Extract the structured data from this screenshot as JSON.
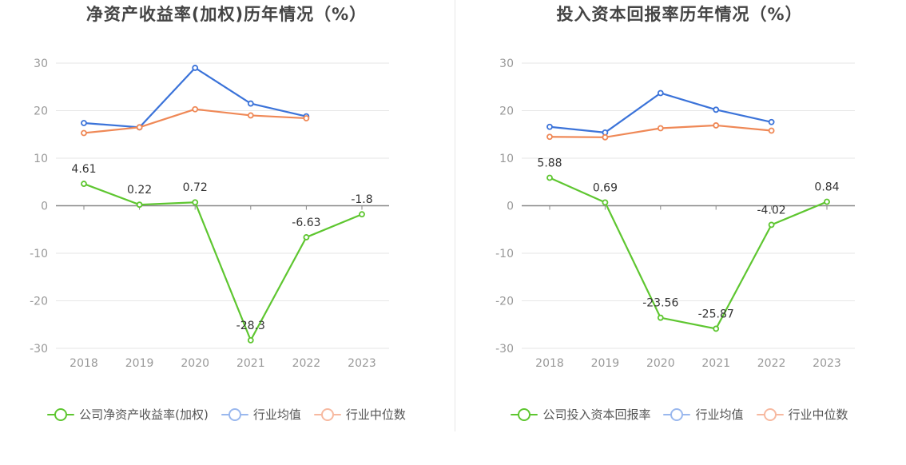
{
  "charts": [
    {
      "title": "净资产收益率(加权)历年情况（%）",
      "legend": [
        "公司净资产收益率(加权)",
        "行业均值",
        "行业中位数"
      ],
      "chart_data": {
        "type": "line",
        "title": "净资产收益率(加权)历年情况（%）",
        "categories": [
          "2018",
          "2019",
          "2020",
          "2021",
          "2022",
          "2023"
        ],
        "ylim": [
          -30,
          30
        ],
        "yticks": [
          30,
          20,
          10,
          0,
          -10,
          -20,
          -30
        ],
        "series": [
          {
            "name": "公司净资产收益率(加权)",
            "color": "#5ec630",
            "values": [
              4.61,
              0.22,
              0.72,
              -28.3,
              -6.63,
              -1.8
            ],
            "labels": [
              "4.61",
              "0.22",
              "0.72",
              "-28.3",
              "-6.63",
              "-1.8"
            ]
          },
          {
            "name": "行业均值",
            "color": "#3b73d9",
            "values": [
              17.4,
              16.5,
              29.0,
              21.5,
              18.8,
              null
            ]
          },
          {
            "name": "行业中位数",
            "color": "#ef8856",
            "values": [
              15.3,
              16.5,
              20.3,
              19.0,
              18.4,
              null
            ]
          }
        ]
      }
    },
    {
      "title": "投入资本回报率历年情况（%）",
      "legend": [
        "公司投入资本回报率",
        "行业均值",
        "行业中位数"
      ],
      "chart_data": {
        "type": "line",
        "title": "投入资本回报率历年情况（%）",
        "categories": [
          "2018",
          "2019",
          "2020",
          "2021",
          "2022",
          "2023"
        ],
        "ylim": [
          -30,
          30
        ],
        "yticks": [
          30,
          20,
          10,
          0,
          -10,
          -20,
          -30
        ],
        "series": [
          {
            "name": "公司投入资本回报率",
            "color": "#5ec630",
            "values": [
              5.88,
              0.69,
              -23.56,
              -25.87,
              -4.02,
              0.84
            ],
            "labels": [
              "5.88",
              "0.69",
              "-23.56",
              "-25.87",
              "-4.02",
              "0.84"
            ]
          },
          {
            "name": "行业均值",
            "color": "#3b73d9",
            "values": [
              16.6,
              15.4,
              23.7,
              20.2,
              17.6,
              null
            ]
          },
          {
            "name": "行业中位数",
            "color": "#ef8856",
            "values": [
              14.5,
              14.4,
              16.3,
              16.9,
              15.8,
              null
            ]
          }
        ]
      }
    }
  ],
  "legend_colors": {
    "company": "#5ec630",
    "mean": "#9ab8ee",
    "median": "#f7b9a0"
  }
}
